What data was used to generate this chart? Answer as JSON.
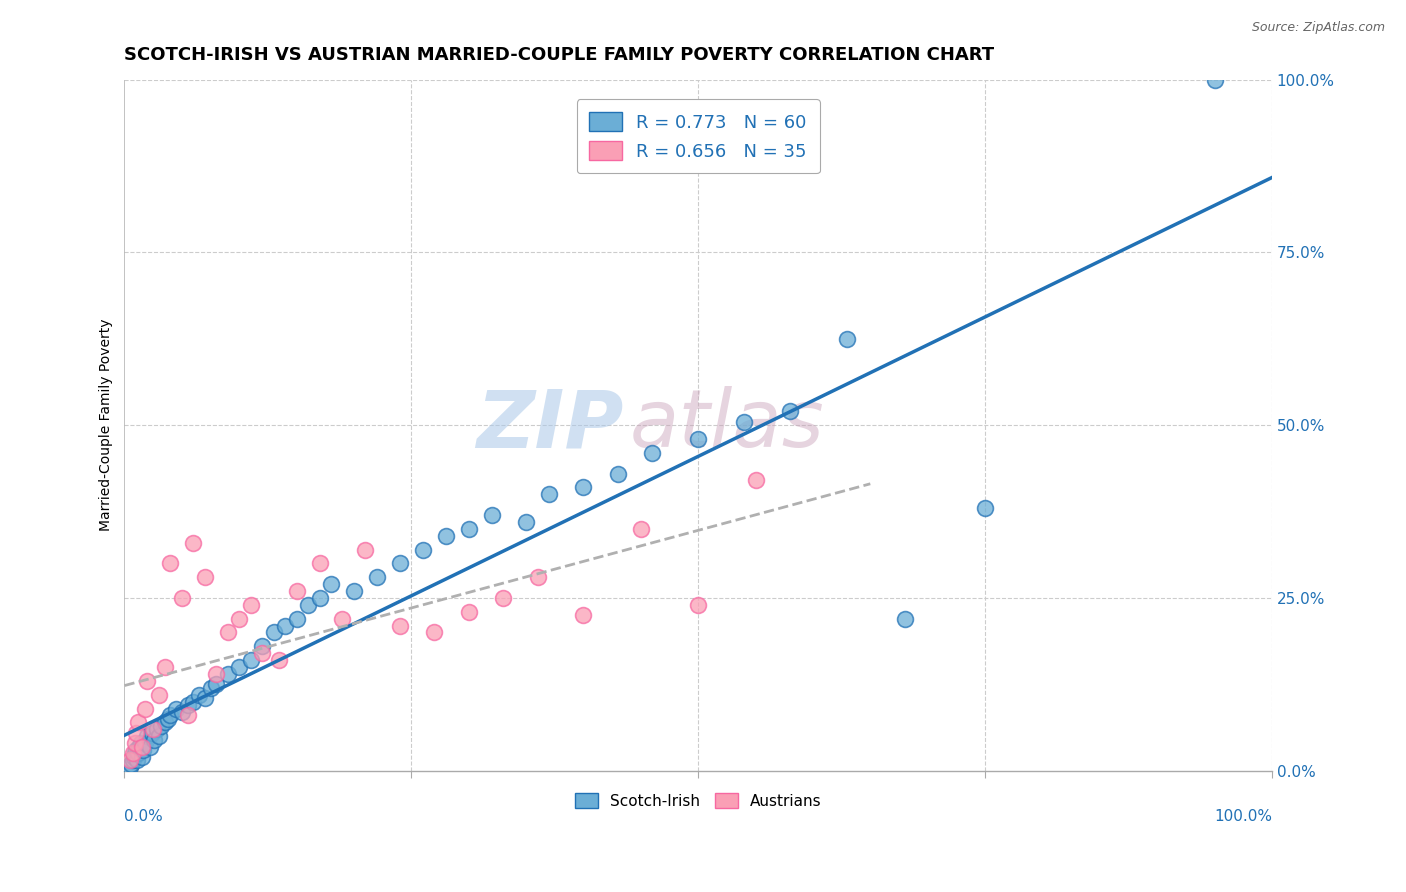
{
  "title": "SCOTCH-IRISH VS AUSTRIAN MARRIED-COUPLE FAMILY POVERTY CORRELATION CHART",
  "source": "Source: ZipAtlas.com",
  "ylabel": "Married-Couple Family Poverty",
  "legend_label1": "Scotch-Irish",
  "legend_label2": "Austrians",
  "r1": 0.773,
  "n1": 60,
  "r2": 0.656,
  "n2": 35,
  "color_blue": "#6baed6",
  "color_pink": "#fa9fb5",
  "color_blue_dark": "#2171b5",
  "color_pink_dark": "#f768a1",
  "watermark_zip": "ZIP",
  "watermark_atlas": "atlas",
  "ytick_values": [
    0,
    25,
    50,
    75,
    100
  ],
  "si_x": [
    0.5,
    0.6,
    0.7,
    0.8,
    0.9,
    1.0,
    1.1,
    1.2,
    1.3,
    1.4,
    1.5,
    1.6,
    1.8,
    2.0,
    2.2,
    2.4,
    2.6,
    2.8,
    3.0,
    3.2,
    3.5,
    3.8,
    4.0,
    4.5,
    5.0,
    5.5,
    6.0,
    6.5,
    7.0,
    7.5,
    8.0,
    9.0,
    10.0,
    11.0,
    12.0,
    13.0,
    14.0,
    15.0,
    16.0,
    17.0,
    18.0,
    20.0,
    22.0,
    24.0,
    26.0,
    28.0,
    30.0,
    32.0,
    35.0,
    37.0,
    40.0,
    43.0,
    46.0,
    50.0,
    54.0,
    58.0,
    63.0,
    68.0,
    75.0,
    95.0
  ],
  "si_y": [
    0.5,
    1.0,
    1.5,
    2.0,
    2.5,
    3.0,
    1.5,
    2.5,
    3.5,
    4.0,
    2.0,
    3.0,
    4.0,
    5.0,
    3.5,
    5.5,
    4.5,
    6.0,
    5.0,
    6.5,
    7.0,
    7.5,
    8.0,
    9.0,
    8.5,
    9.5,
    10.0,
    11.0,
    10.5,
    12.0,
    12.5,
    14.0,
    15.0,
    16.0,
    18.0,
    20.0,
    21.0,
    22.0,
    24.0,
    25.0,
    27.0,
    26.0,
    28.0,
    30.0,
    32.0,
    34.0,
    35.0,
    37.0,
    36.0,
    40.0,
    41.0,
    43.0,
    46.0,
    48.0,
    50.5,
    52.0,
    62.5,
    22.0,
    38.0,
    100.0
  ],
  "au_x": [
    0.5,
    0.7,
    0.9,
    1.0,
    1.2,
    1.5,
    1.8,
    2.0,
    2.5,
    3.0,
    3.5,
    4.0,
    5.0,
    5.5,
    6.0,
    7.0,
    8.0,
    9.0,
    10.0,
    11.0,
    12.0,
    13.5,
    15.0,
    17.0,
    19.0,
    21.0,
    24.0,
    27.0,
    30.0,
    33.0,
    36.0,
    40.0,
    45.0,
    50.0,
    55.0
  ],
  "au_y": [
    1.5,
    2.5,
    4.0,
    5.5,
    7.0,
    3.5,
    9.0,
    13.0,
    6.0,
    11.0,
    15.0,
    30.0,
    25.0,
    8.0,
    33.0,
    28.0,
    14.0,
    20.0,
    22.0,
    24.0,
    17.0,
    16.0,
    26.0,
    30.0,
    22.0,
    32.0,
    21.0,
    20.0,
    23.0,
    25.0,
    28.0,
    22.5,
    35.0,
    24.0,
    42.0
  ]
}
